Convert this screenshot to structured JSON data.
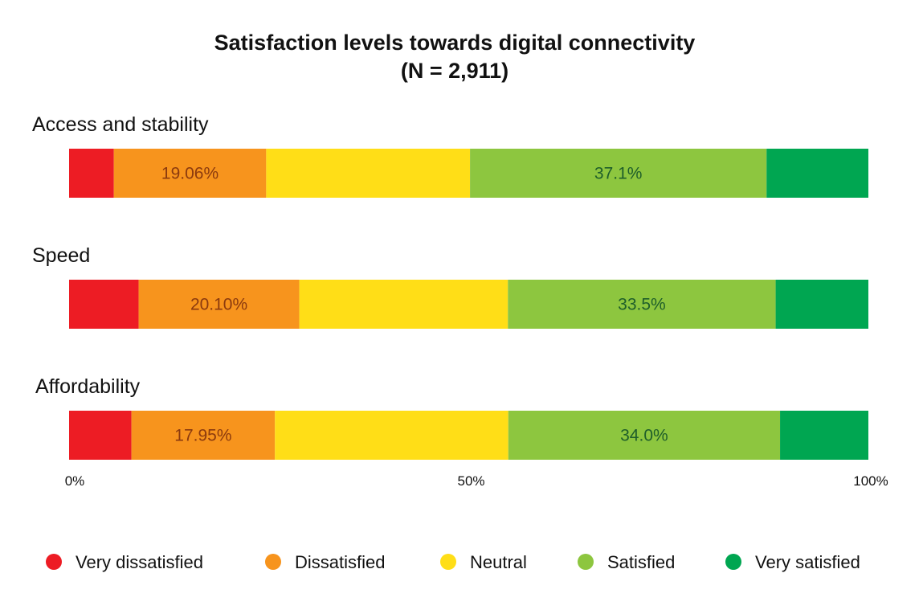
{
  "chart_data": {
    "type": "bar",
    "orientation": "horizontal",
    "stacked": true,
    "percent_stacked": true,
    "title": "Satisfaction levels towards digital connectivity",
    "subtitle": "(N = 2,911)",
    "categories": [
      "Access and stability",
      "Speed",
      "Affordability"
    ],
    "series": [
      {
        "name": "Very dissatisfied",
        "color": "#ED1C24",
        "values": [
          5.6,
          8.7,
          7.8
        ],
        "labels": [
          "",
          "",
          ""
        ]
      },
      {
        "name": "Dissatisfied",
        "color": "#F7941D",
        "values": [
          19.06,
          20.1,
          17.95
        ],
        "labels": [
          "19.06%",
          "20.10%",
          "17.95%"
        ],
        "label_color": "#8B3A0E"
      },
      {
        "name": "Neutral",
        "color": "#FFDE17",
        "values": [
          25.5,
          26.1,
          29.2
        ],
        "labels": [
          "",
          "",
          ""
        ]
      },
      {
        "name": "Satisfied",
        "color": "#8DC63F",
        "values": [
          37.1,
          33.5,
          34.0
        ],
        "labels": [
          "37.1%",
          "33.5%",
          "34.0%"
        ],
        "label_color": "#1E5E2A"
      },
      {
        "name": "Very satisfied",
        "color": "#00A651",
        "values": [
          12.74,
          11.6,
          11.05
        ],
        "labels": [
          "",
          "",
          ""
        ]
      }
    ],
    "xlim": [
      0,
      100
    ],
    "xticks": [
      {
        "value": 0,
        "label": "0%"
      },
      {
        "value": 50,
        "label": "50%"
      },
      {
        "value": 100,
        "label": "100%"
      }
    ],
    "grid": false,
    "legend_position": "bottom"
  }
}
